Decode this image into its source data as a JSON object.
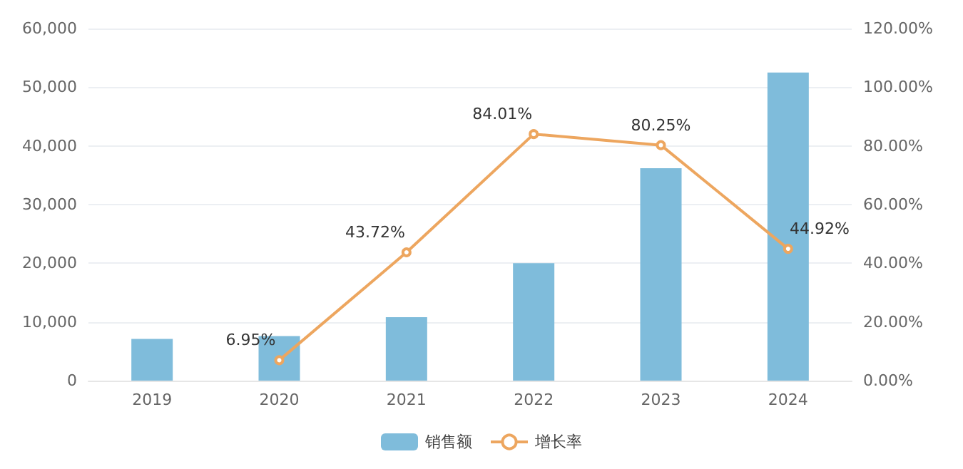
{
  "chart_data": {
    "type": "bar",
    "categories": [
      "2019",
      "2020",
      "2021",
      "2022",
      "2023",
      "2024"
    ],
    "series": [
      {
        "name": "销售额",
        "color": "#7fbcdb",
        "values": [
          7100,
          7600,
          10800,
          20000,
          36200,
          52500
        ]
      },
      {
        "name": "增长率",
        "type": "line",
        "axis": "y2",
        "color": "#eda65f",
        "values": [
          null,
          6.95,
          43.72,
          84.01,
          80.25,
          44.92
        ],
        "value_labels": [
          null,
          "6.95%",
          "43.72%",
          "84.01%",
          "80.25%",
          "44.92%"
        ]
      }
    ],
    "ylim": [
      0,
      60000
    ],
    "yticks": [
      {
        "value": 0,
        "label": "0"
      },
      {
        "value": 10000,
        "label": "10,000"
      },
      {
        "value": 20000,
        "label": "20,000"
      },
      {
        "value": 30000,
        "label": "30,000"
      },
      {
        "value": 40000,
        "label": "40,000"
      },
      {
        "value": 50000,
        "label": "50,000"
      },
      {
        "value": 60000,
        "label": "60,000"
      }
    ],
    "y2lim": [
      0,
      120
    ],
    "y2ticks": [
      {
        "value": 0,
        "label": "0.00%"
      },
      {
        "value": 20,
        "label": "20.00%"
      },
      {
        "value": 40,
        "label": "40.00%"
      },
      {
        "value": 60,
        "label": "60.00%"
      },
      {
        "value": 80,
        "label": "80.00%"
      },
      {
        "value": 100,
        "label": "100.00%"
      },
      {
        "value": 120,
        "label": "120.00%"
      }
    ],
    "grid": "y",
    "legend": "bottom",
    "marker": "circle",
    "line_style": "solid"
  }
}
